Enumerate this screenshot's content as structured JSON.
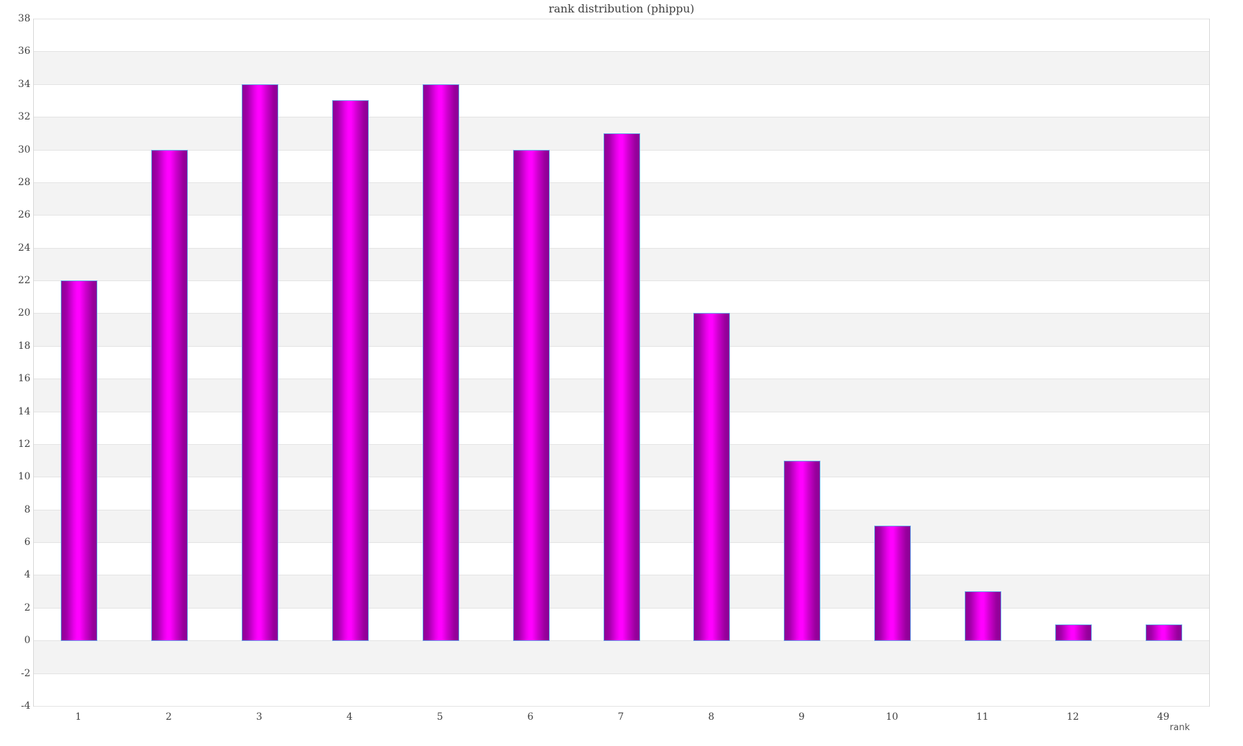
{
  "chart_data": {
    "type": "bar",
    "title": "rank distribution (phippu)",
    "xlabel": "rank",
    "ylabel": "",
    "categories": [
      "1",
      "2",
      "3",
      "4",
      "5",
      "6",
      "7",
      "8",
      "9",
      "10",
      "11",
      "12",
      "49"
    ],
    "values": [
      22,
      30,
      34,
      33,
      34,
      30,
      31,
      20,
      11,
      7,
      3,
      1,
      1
    ],
    "ylim": [
      -4,
      38
    ],
    "ytick_step": 2,
    "yticks": [
      38,
      36,
      34,
      32,
      30,
      28,
      26,
      24,
      22,
      20,
      18,
      16,
      14,
      12,
      10,
      8,
      6,
      4,
      2,
      0,
      -2,
      -4
    ],
    "legend": "none",
    "grid": "horizontal gridlines every 2 units with alternating white/gray bands",
    "colors": {
      "bar_fill_edge": "#8a0094",
      "bar_fill_center": "#ff00ff",
      "bar_border": "#6aa9e9",
      "band_gray": "#f3f3f3",
      "band_white": "#ffffff",
      "gridline": "#e3e3e3",
      "plot_border": "#d6d6d6",
      "tick_text": "#3f3f3f",
      "axis_title_text": "#555555"
    }
  }
}
